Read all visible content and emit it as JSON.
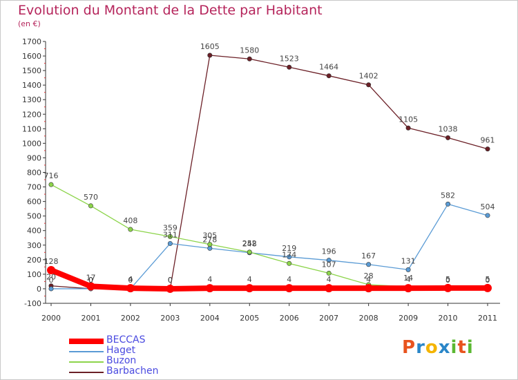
{
  "title": "Evolution du Montant de la Dette par Habitant",
  "subtitle": "(en €)",
  "logo": {
    "text": "Proxiti",
    "colors": [
      "#e8531e",
      "#2a86c8",
      "#f4b400",
      "#2a86c8",
      "#5bb832",
      "#e8531e",
      "#5bb832"
    ]
  },
  "chart_data": {
    "type": "line",
    "x": [
      "2000",
      "2001",
      "2002",
      "2003",
      "2004",
      "2005",
      "2006",
      "2007",
      "2008",
      "2009",
      "2010",
      "2011"
    ],
    "ylim": [
      -100,
      1700
    ],
    "yticks": [
      -100,
      0,
      100,
      200,
      300,
      400,
      500,
      600,
      700,
      800,
      900,
      1000,
      1100,
      1200,
      1300,
      1400,
      1500,
      1600,
      1700
    ],
    "grid": false,
    "legend": "bottom-left",
    "series": [
      {
        "name": "Barbachen",
        "color": "#6b1f26",
        "width": 1.3,
        "values": [
          20,
          0,
          4,
          0,
          1605,
          1580,
          1523,
          1464,
          1402,
          1105,
          1038,
          961
        ],
        "labels": [
          "20",
          "0",
          "4",
          "0",
          "1605",
          "1580",
          "1523",
          "1464",
          "1402",
          "1105",
          "1038",
          "961"
        ]
      },
      {
        "name": "Haget",
        "color": "#5a9bd5",
        "width": 1.3,
        "values": [
          0,
          0,
          0,
          311,
          278,
          248,
          219,
          196,
          167,
          131,
          582,
          504
        ],
        "labels": [
          "0",
          "0",
          "0",
          "311",
          "278",
          "248",
          "219",
          "196",
          "167",
          "131",
          "582",
          "504"
        ]
      },
      {
        "name": "Buzon",
        "color": "#8cd44a",
        "width": 1.3,
        "values": [
          716,
          570,
          408,
          359,
          305,
          252,
          174,
          107,
          28,
          14,
          0,
          0
        ],
        "labels": [
          "716",
          "570",
          "408",
          "359",
          "305",
          "252",
          "174",
          "107",
          "28",
          "14",
          "0",
          "0"
        ]
      },
      {
        "name": "BECCAS",
        "color": "#ff0000",
        "width": 8,
        "values": [
          128,
          17,
          4,
          0,
          4,
          4,
          4,
          4,
          4,
          4,
          5,
          5
        ],
        "labels": [
          "128",
          "17",
          "4",
          "0",
          "4",
          "4",
          "4",
          "4",
          "4",
          "4",
          "5",
          "5"
        ]
      }
    ]
  }
}
